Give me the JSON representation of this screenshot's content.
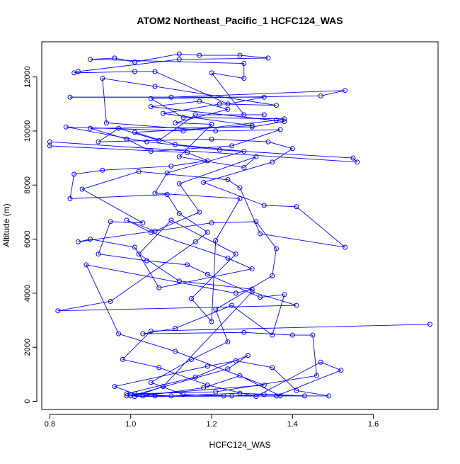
{
  "chart_data": {
    "type": "scatter",
    "title": "ATOM2 Northeast_Pacific_1 HCFC124_WAS",
    "xlabel": "HCFC124_WAS",
    "ylabel": "Altitude (m)",
    "xlim": [
      0.78,
      1.76
    ],
    "ylim": [
      -300,
      13300
    ],
    "xticks": [
      0.8,
      1.0,
      1.2,
      1.4,
      1.6
    ],
    "xtick_labels": [
      "0.8",
      "1.0",
      "1.2",
      "1.4",
      "1.6"
    ],
    "yticks": [
      0,
      2000,
      4000,
      6000,
      8000,
      10000,
      12000
    ],
    "ytick_labels": [
      "0",
      "2000",
      "4000",
      "6000",
      "8000",
      "10000",
      "12000"
    ],
    "grid": false,
    "connected": true,
    "series_color": "#0000ff",
    "series": [
      {
        "values": [
          [
            1.74,
            2850
          ],
          [
            1.05,
            2600
          ],
          [
            0.98,
            1550
          ],
          [
            1.07,
            1250
          ],
          [
            1.19,
            600
          ],
          [
            1.31,
            180
          ],
          [
            1.47,
            1450
          ],
          [
            1.52,
            1150
          ],
          [
            1.36,
            200
          ],
          [
            1.01,
            180
          ],
          [
            1.08,
            550
          ],
          [
            1.3,
            4050
          ],
          [
            1.41,
            3550
          ],
          [
            0.82,
            3350
          ],
          [
            0.95,
            3700
          ],
          [
            1.16,
            5900
          ],
          [
            1.19,
            6250
          ],
          [
            1.12,
            6950
          ],
          [
            1.09,
            7650
          ],
          [
            0.85,
            7500
          ],
          [
            0.86,
            8400
          ],
          [
            0.93,
            8550
          ],
          [
            1.1,
            8700
          ],
          [
            1.19,
            8900
          ],
          [
            1.14,
            9200
          ],
          [
            0.8,
            9450
          ],
          [
            0.8,
            9600
          ],
          [
            1.56,
            8850
          ],
          [
            1.55,
            9000
          ],
          [
            1.22,
            9300
          ],
          [
            1.04,
            9600
          ],
          [
            0.84,
            10150
          ],
          [
            1.13,
            10000
          ],
          [
            1.36,
            10400
          ],
          [
            1.38,
            10450
          ],
          [
            1.13,
            10500
          ],
          [
            1.05,
            11200
          ],
          [
            1.47,
            11300
          ],
          [
            1.53,
            11500
          ],
          [
            1.1,
            11250
          ],
          [
            0.85,
            11250
          ],
          [
            1.33,
            11250
          ],
          [
            1.24,
            11000
          ],
          [
            1.06,
            12200
          ],
          [
            1.01,
            12200
          ],
          [
            0.86,
            12150
          ],
          [
            0.87,
            12200
          ],
          [
            1.12,
            12650
          ],
          [
            1.34,
            12700
          ],
          [
            1.27,
            12800
          ],
          [
            1.17,
            12800
          ],
          [
            1.12,
            12850
          ],
          [
            1.01,
            12550
          ],
          [
            0.96,
            12700
          ],
          [
            0.9,
            12650
          ],
          [
            1.28,
            12500
          ],
          [
            1.28,
            11950
          ],
          [
            1.2,
            12150
          ],
          [
            1.28,
            10600
          ],
          [
            1.33,
            10600
          ],
          [
            1.16,
            10600
          ],
          [
            1.07,
            9650
          ],
          [
            0.97,
            10100
          ],
          [
            0.92,
            9600
          ],
          [
            1.2,
            9700
          ],
          [
            1.34,
            9600
          ],
          [
            1.4,
            9350
          ],
          [
            1.35,
            8850
          ],
          [
            1.18,
            8100
          ],
          [
            1.33,
            7250
          ],
          [
            1.41,
            7200
          ],
          [
            1.53,
            5700
          ],
          [
            1.32,
            6200
          ],
          [
            1.27,
            7900
          ],
          [
            1.24,
            8200
          ],
          [
            1.02,
            8500
          ],
          [
            0.88,
            7850
          ],
          [
            1.03,
            6600
          ],
          [
            0.95,
            6650
          ],
          [
            0.92,
            5450
          ],
          [
            1.04,
            5200
          ],
          [
            1.14,
            5050
          ],
          [
            1.19,
            4700
          ],
          [
            1.32,
            3850
          ],
          [
            1.38,
            3950
          ],
          [
            1.35,
            2450
          ],
          [
            1.25,
            3550
          ],
          [
            1.11,
            2700
          ],
          [
            1.03,
            2500
          ],
          [
            1.28,
            2550
          ],
          [
            1.4,
            2450
          ],
          [
            1.45,
            2450
          ],
          [
            1.46,
            950
          ],
          [
            1.21,
            350
          ],
          [
            1.01,
            280
          ],
          [
            0.96,
            550
          ],
          [
            1.19,
            1300
          ],
          [
            1.26,
            1500
          ],
          [
            1.35,
            1250
          ],
          [
            1.41,
            400
          ],
          [
            1.49,
            200
          ],
          [
            1.23,
            200
          ],
          [
            1.03,
            200
          ],
          [
            1.18,
            500
          ],
          [
            1.27,
            950
          ],
          [
            1.37,
            200
          ],
          [
            1.06,
            200
          ],
          [
            0.99,
            200
          ],
          [
            1.33,
            600
          ],
          [
            1.11,
            1850
          ],
          [
            0.97,
            2500
          ],
          [
            0.89,
            5050
          ],
          [
            1.26,
            4000
          ],
          [
            1.3,
            4150
          ],
          [
            1.12,
            4450
          ],
          [
            1.02,
            5450
          ],
          [
            1.1,
            6700
          ],
          [
            1.26,
            5450
          ],
          [
            1.15,
            3800
          ],
          [
            1.2,
            2950
          ],
          [
            1.21,
            5950
          ],
          [
            1.27,
            7500
          ],
          [
            1.06,
            7700
          ],
          [
            1.09,
            8450
          ],
          [
            1.28,
            9250
          ],
          [
            1.11,
            9500
          ],
          [
            1.01,
            9950
          ],
          [
            1.3,
            10200
          ],
          [
            1.08,
            10650
          ],
          [
            1.22,
            11000
          ],
          [
            1.36,
            10950
          ],
          [
            1.06,
            11650
          ],
          [
            0.93,
            11950
          ],
          [
            0.94,
            10300
          ],
          [
            1.21,
            10000
          ],
          [
            1.37,
            10050
          ],
          [
            1.25,
            9450
          ],
          [
            1.05,
            9250
          ],
          [
            0.99,
            9700
          ],
          [
            0.9,
            10100
          ],
          [
            1.3,
            10150
          ],
          [
            1.38,
            10350
          ],
          [
            1.05,
            10900
          ],
          [
            1.17,
            11100
          ],
          [
            1.24,
            10800
          ],
          [
            1.11,
            10300
          ],
          [
            1.2,
            10250
          ],
          [
            1.12,
            9050
          ],
          [
            1.28,
            8650
          ],
          [
            1.31,
            9050
          ],
          [
            1.12,
            8050
          ],
          [
            1.17,
            7000
          ],
          [
            1.06,
            6300
          ],
          [
            0.99,
            6700
          ],
          [
            1.05,
            6250
          ],
          [
            1.24,
            5300
          ],
          [
            1.3,
            4900
          ],
          [
            1.07,
            4200
          ],
          [
            1.01,
            5700
          ],
          [
            0.9,
            6000
          ],
          [
            0.87,
            5900
          ],
          [
            1.2,
            6600
          ],
          [
            1.31,
            6650
          ],
          [
            1.36,
            5650
          ],
          [
            1.35,
            4650
          ],
          [
            1.21,
            3400
          ],
          [
            1.24,
            2200
          ],
          [
            1.15,
            1550
          ],
          [
            1.05,
            700
          ],
          [
            1.13,
            250
          ],
          [
            1.25,
            200
          ],
          [
            1.33,
            250
          ],
          [
            1.43,
            200
          ],
          [
            1.27,
            300
          ],
          [
            1.1,
            200
          ],
          [
            0.99,
            280
          ],
          [
            1.16,
            900
          ],
          [
            1.29,
            1700
          ],
          [
            1.24,
            1200
          ],
          [
            1.0,
            200
          ]
        ]
      }
    ]
  }
}
